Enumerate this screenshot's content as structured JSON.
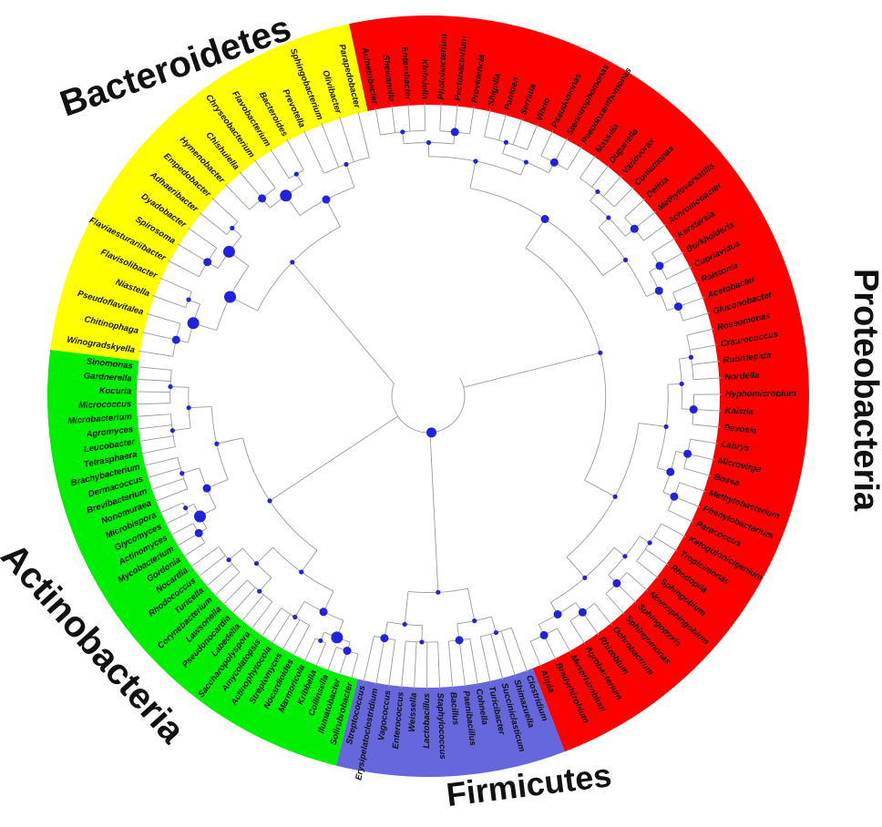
{
  "clades": [
    {
      "name": "Proteobacteria",
      "color": "#ff0000",
      "taxa": [
        "Acinetobacter",
        "Shewanella",
        "Enterobacter",
        "Klebsiella",
        "Photobacterium",
        "Pectobacterium",
        "Providencia",
        "Shigella",
        "Pantoea",
        "Serratia",
        "Vibrio",
        "Pseudomonas",
        "Stenotrophomonas",
        "Pseudoxanthomonas",
        "Massilia",
        "Duganella",
        "Variovorax",
        "Comamonas",
        "Delftia",
        "Methyloversatilis",
        "Achromobacter",
        "Kerstersia",
        "Burkholderia",
        "Cupriavidus",
        "Ralstonia",
        "Acetobacter",
        "Gluconobacter",
        "Roseomonas",
        "Craurococcus",
        "Rubritepida",
        "Nordella",
        "Hyphomicrobium",
        "Kaistia",
        "Devosia",
        "Labrys",
        "Microvirga",
        "Bosea",
        "Methylobacterium",
        "Phenylobacterium",
        "Paracoccus",
        "Ketogulonicigenium",
        "Tropicimonas",
        "Rhodopila",
        "Sphingobium",
        "Novosphingobium",
        "Sphingopyxis",
        "Sphingomonas",
        "Ochrobactrum",
        "Rhizobium",
        "Agrobacterium",
        "Mesorhizobium",
        "Bradyrhizobium",
        "Afipia"
      ]
    },
    {
      "name": "Firmicutes",
      "color": "#6666dd",
      "taxa": [
        "Clostridium",
        "Shimazuella",
        "Succiniclasticum",
        "Turicibacter",
        "Cohnella",
        "Paenibacillus",
        "Bacillus",
        "Staphylococcus",
        "Lactobacillus",
        "Weissella",
        "Enterococcus",
        "Vagococcus",
        "Erysipelatoclostridium",
        "Streptococcus"
      ]
    },
    {
      "name": "Actinobacteria",
      "color": "#00ee00",
      "taxa": [
        "Solirubrobacter",
        "Ilumatobacter",
        "Collinsella",
        "Kribbella",
        "Marmoricola",
        "Nocardioides",
        "Streptomyces",
        "Actinophytocola",
        "Amycolatopsis",
        "Saccharopolyspora",
        "Labedella",
        "Pseudonocardia",
        "Lawsonella",
        "Corynebacterium",
        "Turicella",
        "Rhodococcus",
        "Nocardia",
        "Gordonia",
        "Mycobacterium",
        "Actinomyces",
        "Glycomyces",
        "Microbispora",
        "Nonomuraea",
        "Brevibacterium",
        "Dermacoccus",
        "Brachybacterium",
        "Tetrasphaera",
        "Leucobacter",
        "Agromyces",
        "Microbacterium",
        "Micrococcus",
        "Kocuria",
        "Gardnerella",
        "Sinomonas"
      ]
    },
    {
      "name": "Bacteroidetes",
      "color": "#ffff00",
      "taxa": [
        "Winogradskyella",
        "Chitinophaga",
        "Pseudoflavitalea",
        "Niastella",
        "Flavisolibacter",
        "Flaviaesturariibacter",
        "Spirosoma",
        "Dyadobacter",
        "Adhaeribacter",
        "Empedobacter",
        "Hymenobacter",
        "Chishuiella",
        "Chryseobacterium",
        "Flavobacterium",
        "Bacteroides",
        "Prevotella",
        "Sphingobacterium",
        "Olivibacter",
        "Parapedobacter"
      ]
    }
  ]
}
